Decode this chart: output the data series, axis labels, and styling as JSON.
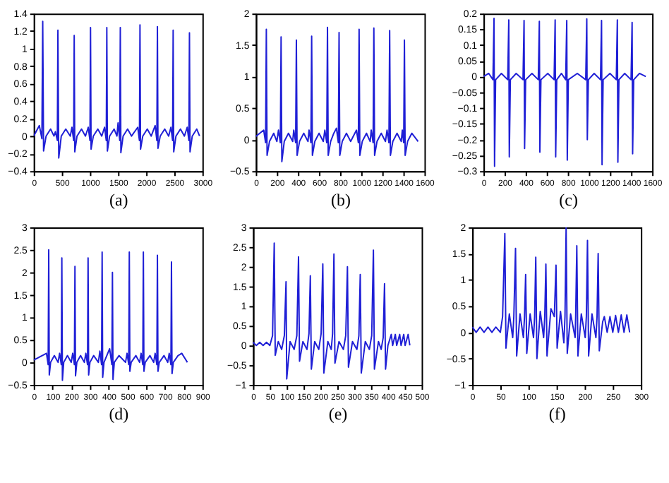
{
  "chart_data": [
    {
      "type": "line",
      "xlabel": "(a)",
      "xlim": [
        0,
        3000
      ],
      "xticks": [
        0,
        500,
        1000,
        1500,
        2000,
        2500,
        3000
      ],
      "ylim": [
        -0.4,
        1.4
      ],
      "yticks": [
        -0.4,
        -0.2,
        0,
        0.2,
        0.4,
        0.6,
        0.8,
        1,
        1.2,
        1.4
      ],
      "color": "#1f1fd6",
      "x": [
        0,
        100,
        145,
        160,
        175,
        220,
        300,
        360,
        385,
        420,
        430,
        445,
        490,
        570,
        650,
        680,
        710,
        720,
        730,
        770,
        850,
        920,
        970,
        1000,
        1010,
        1020,
        1060,
        1140,
        1210,
        1260,
        1290,
        1300,
        1310,
        1350,
        1430,
        1480,
        1500,
        1530,
        1540,
        1550,
        1590,
        1670,
        1740,
        1850,
        1880,
        1890,
        1900,
        1940,
        2020,
        2090,
        2160,
        2190,
        2200,
        2210,
        2250,
        2330,
        2400,
        2440,
        2470,
        2480,
        2490,
        2530,
        2610,
        2680,
        2730,
        2760,
        2770,
        2780,
        2820,
        2900,
        2950
      ],
      "values": [
        0,
        0.12,
        -0.03,
        1.31,
        -0.17,
        0,
        0.08,
        0,
        0.05,
        -0.05,
        1.21,
        -0.25,
        0,
        0.08,
        0,
        0.1,
        -0.05,
        1.15,
        -0.18,
        0,
        0.08,
        0,
        0.1,
        -0.05,
        1.24,
        -0.15,
        0,
        0.08,
        0,
        0.1,
        -0.05,
        1.24,
        -0.17,
        0,
        0.08,
        0,
        0.15,
        -0.05,
        1.24,
        -0.19,
        0,
        0.08,
        0,
        0.1,
        -0.05,
        1.27,
        -0.15,
        0,
        0.08,
        0,
        0.12,
        -0.05,
        1.25,
        -0.14,
        0,
        0.08,
        0,
        0.1,
        -0.05,
        1.21,
        -0.18,
        0,
        0.08,
        0,
        0.1,
        -0.05,
        1.18,
        -0.18,
        0,
        0.08,
        0
      ]
    },
    {
      "type": "line",
      "xlabel": "(b)",
      "xlim": [
        0,
        1600
      ],
      "xticks": [
        0,
        200,
        400,
        600,
        800,
        1000,
        1200,
        1400,
        1600
      ],
      "ylim": [
        -0.5,
        2
      ],
      "yticks": [
        -0.5,
        0,
        0.5,
        1,
        1.5,
        2
      ],
      "color": "#1f1fd6",
      "x": [
        0,
        75,
        93,
        100,
        107,
        130,
        170,
        200,
        215,
        233,
        240,
        247,
        270,
        310,
        350,
        360,
        378,
        385,
        392,
        415,
        455,
        495,
        505,
        523,
        530,
        537,
        560,
        600,
        640,
        655,
        673,
        680,
        687,
        710,
        740,
        765,
        783,
        790,
        797,
        820,
        860,
        900,
        955,
        973,
        980,
        987,
        1010,
        1050,
        1085,
        1095,
        1113,
        1120,
        1127,
        1150,
        1190,
        1230,
        1245,
        1263,
        1270,
        1277,
        1300,
        1340,
        1380,
        1390,
        1403,
        1410,
        1417,
        1440,
        1480,
        1540
      ],
      "values": [
        0.05,
        0.15,
        -0.05,
        1.75,
        -0.25,
        -0.03,
        0.1,
        -0.03,
        0.15,
        -0.05,
        1.63,
        -0.35,
        -0.03,
        0.1,
        -0.03,
        0.15,
        -0.05,
        1.58,
        -0.25,
        -0.03,
        0.1,
        -0.03,
        0.15,
        -0.05,
        1.64,
        -0.25,
        -0.03,
        0.1,
        -0.03,
        0.15,
        -0.05,
        1.78,
        -0.25,
        -0.03,
        0.1,
        0.18,
        -0.05,
        1.7,
        -0.25,
        -0.03,
        0.1,
        -0.03,
        0.15,
        -0.05,
        1.75,
        -0.25,
        -0.03,
        0.1,
        -0.03,
        0.15,
        -0.05,
        1.77,
        -0.25,
        -0.03,
        0.1,
        -0.03,
        0.15,
        -0.05,
        1.73,
        -0.25,
        -0.03,
        0.1,
        -0.03,
        0.15,
        -0.05,
        1.58,
        -0.25,
        -0.03,
        0.1,
        -0.03
      ]
    },
    {
      "type": "line",
      "xlabel": "(c)",
      "xlim": [
        0,
        1600
      ],
      "xticks": [
        0,
        200,
        400,
        600,
        800,
        1000,
        1200,
        1400,
        1600
      ],
      "ylim": [
        -0.3,
        0.2
      ],
      "yticks": [
        -0.3,
        -0.25,
        -0.2,
        -0.15,
        -0.1,
        -0.05,
        0,
        0.05,
        0.1,
        0.15,
        0.2
      ],
      "color": "#1f1fd6",
      "x": [
        0,
        50,
        90,
        100,
        105,
        115,
        170,
        230,
        240,
        245,
        255,
        310,
        375,
        385,
        390,
        400,
        460,
        520,
        530,
        535,
        545,
        610,
        670,
        680,
        685,
        695,
        740,
        780,
        790,
        795,
        805,
        890,
        970,
        980,
        985,
        995,
        1050,
        1110,
        1120,
        1125,
        1135,
        1200,
        1260,
        1270,
        1275,
        1285,
        1340,
        1400,
        1410,
        1415,
        1425,
        1480,
        1540
      ],
      "values": [
        0,
        0.01,
        -0.01,
        0.185,
        -0.285,
        -0.01,
        0.01,
        -0.01,
        0.18,
        -0.255,
        -0.01,
        0.01,
        -0.01,
        0.178,
        -0.228,
        -0.01,
        0.01,
        -0.01,
        0.175,
        -0.24,
        -0.01,
        0.01,
        -0.01,
        0.18,
        -0.255,
        -0.01,
        0.01,
        -0.01,
        0.178,
        -0.265,
        -0.01,
        0.01,
        -0.01,
        0.183,
        -0.2,
        -0.01,
        0.01,
        -0.01,
        0.178,
        -0.28,
        -0.01,
        0.01,
        -0.01,
        0.18,
        -0.272,
        -0.01,
        0.01,
        -0.01,
        0.172,
        -0.245,
        -0.01,
        0.01,
        0
      ]
    },
    {
      "type": "line",
      "xlabel": "(d)",
      "xlim": [
        0,
        900
      ],
      "xticks": [
        0,
        100,
        200,
        300,
        400,
        500,
        600,
        700,
        800,
        900
      ],
      "ylim": [
        -0.5,
        3
      ],
      "yticks": [
        -0.5,
        0,
        0.5,
        1,
        1.5,
        2,
        2.5,
        3
      ],
      "color": "#1f1fd6",
      "x": [
        0,
        68,
        77,
        80,
        83,
        90,
        110,
        130,
        138,
        147,
        150,
        153,
        160,
        180,
        200,
        208,
        217,
        220,
        223,
        230,
        250,
        270,
        278,
        287,
        290,
        293,
        300,
        320,
        345,
        353,
        362,
        365,
        368,
        375,
        405,
        417,
        420,
        423,
        430,
        455,
        490,
        498,
        507,
        510,
        513,
        520,
        545,
        565,
        573,
        582,
        585,
        588,
        595,
        620,
        640,
        648,
        657,
        660,
        663,
        670,
        695,
        715,
        723,
        732,
        735,
        738,
        745,
        770,
        790,
        820
      ],
      "values": [
        0.05,
        0.2,
        -0.05,
        2.5,
        -0.28,
        0,
        0.15,
        0,
        0.2,
        -0.05,
        2.32,
        -0.4,
        0,
        0.15,
        0,
        0.2,
        -0.05,
        2.13,
        -0.3,
        0,
        0.15,
        0,
        0.2,
        -0.05,
        2.32,
        -0.28,
        0,
        0.15,
        0,
        0.25,
        -0.05,
        2.45,
        -0.33,
        0,
        0.3,
        -0.05,
        2,
        -0.38,
        0,
        0.15,
        0,
        0.2,
        -0.05,
        2.45,
        -0.2,
        0,
        0.15,
        0,
        0.2,
        -0.05,
        2.45,
        -0.2,
        0,
        0.15,
        0,
        0.2,
        -0.05,
        2.38,
        -0.2,
        0,
        0.15,
        0,
        0.2,
        -0.05,
        2.23,
        -0.25,
        0,
        0.15,
        0.2,
        0
      ]
    },
    {
      "type": "line",
      "xlabel": "(e)",
      "xlim": [
        0,
        500
      ],
      "xticks": [
        0,
        50,
        100,
        150,
        200,
        250,
        300,
        350,
        400,
        450,
        500
      ],
      "ylim": [
        -1,
        3
      ],
      "yticks": [
        -1,
        -0.5,
        0,
        0.5,
        1,
        1.5,
        2,
        2.5,
        3
      ],
      "color": "#1f1fd6",
      "x": [
        0,
        10,
        20,
        30,
        40,
        50,
        58,
        63,
        66,
        75,
        85,
        93,
        98,
        100,
        110,
        122,
        130,
        135,
        138,
        148,
        160,
        166,
        170,
        173,
        183,
        195,
        202,
        207,
        210,
        222,
        232,
        236,
        240,
        243,
        255,
        268,
        275,
        280,
        283,
        295,
        308,
        314,
        318,
        321,
        333,
        345,
        352,
        357,
        360,
        372,
        380,
        386,
        390,
        393,
        400,
        410,
        414,
        422,
        426,
        435,
        439,
        447,
        451,
        460,
        465
      ],
      "values": [
        0.08,
        0,
        0.08,
        0,
        0.08,
        0,
        0.25,
        2.6,
        -0.25,
        0.1,
        -0.1,
        0.25,
        1.62,
        -0.85,
        0.1,
        -0.1,
        0.25,
        2.25,
        -0.4,
        0.1,
        -0.1,
        0.3,
        1.77,
        -0.6,
        0.1,
        -0.1,
        0.3,
        2.07,
        -0.7,
        0.1,
        -0.1,
        0.3,
        2.32,
        -0.45,
        0.1,
        -0.1,
        0.25,
        2,
        -0.55,
        0.1,
        -0.1,
        0.25,
        1.8,
        -0.7,
        0.1,
        -0.1,
        0.25,
        2.42,
        -0.6,
        0.1,
        -0.1,
        0.2,
        1.57,
        -0.6,
        0,
        0.28,
        0,
        0.28,
        0,
        0.28,
        0,
        0.28,
        0,
        0.28,
        0
      ]
    },
    {
      "type": "line",
      "xlabel": "(f)",
      "xlim": [
        0,
        300
      ],
      "xticks": [
        0,
        50,
        100,
        150,
        200,
        250,
        300
      ],
      "ylim": [
        -1,
        2
      ],
      "yticks": [
        -1,
        -0.5,
        0,
        0.5,
        1,
        1.5,
        2
      ],
      "color": "#1f1fd6",
      "x": [
        0,
        7,
        14,
        21,
        28,
        35,
        42,
        50,
        54,
        58,
        60,
        66,
        72,
        74,
        77,
        79,
        85,
        91,
        93,
        95,
        97,
        103,
        109,
        111,
        113,
        115,
        121,
        127,
        129,
        131,
        133,
        140,
        146,
        149,
        151,
        157,
        163,
        165,
        167,
        169,
        175,
        183,
        184,
        186,
        188,
        194,
        201,
        203,
        205,
        207,
        213,
        220,
        222,
        224,
        226,
        232,
        235,
        240,
        245,
        250,
        255,
        260,
        265,
        270,
        275,
        280
      ],
      "values": [
        0.1,
        0,
        0.1,
        0,
        0.1,
        0,
        0.1,
        0,
        0.3,
        1.88,
        -0.3,
        0.35,
        -0.1,
        0.3,
        1.6,
        -0.45,
        0.35,
        -0.1,
        0.3,
        1.1,
        -0.4,
        0.35,
        -0.1,
        0.3,
        1.43,
        -0.5,
        0.4,
        -0.1,
        0.3,
        1.3,
        -0.45,
        0.45,
        0.3,
        1.28,
        -0.3,
        0.4,
        -0.2,
        0.3,
        2,
        -0.4,
        0.35,
        -0.1,
        0.3,
        1.65,
        -0.45,
        0.35,
        -0.1,
        0.3,
        1.75,
        -0.45,
        0.35,
        -0.1,
        0.3,
        1.5,
        -0.35,
        0.2,
        0.3,
        0,
        0.3,
        0,
        0.32,
        0,
        0.33,
        0,
        0.33,
        0
      ]
    }
  ]
}
